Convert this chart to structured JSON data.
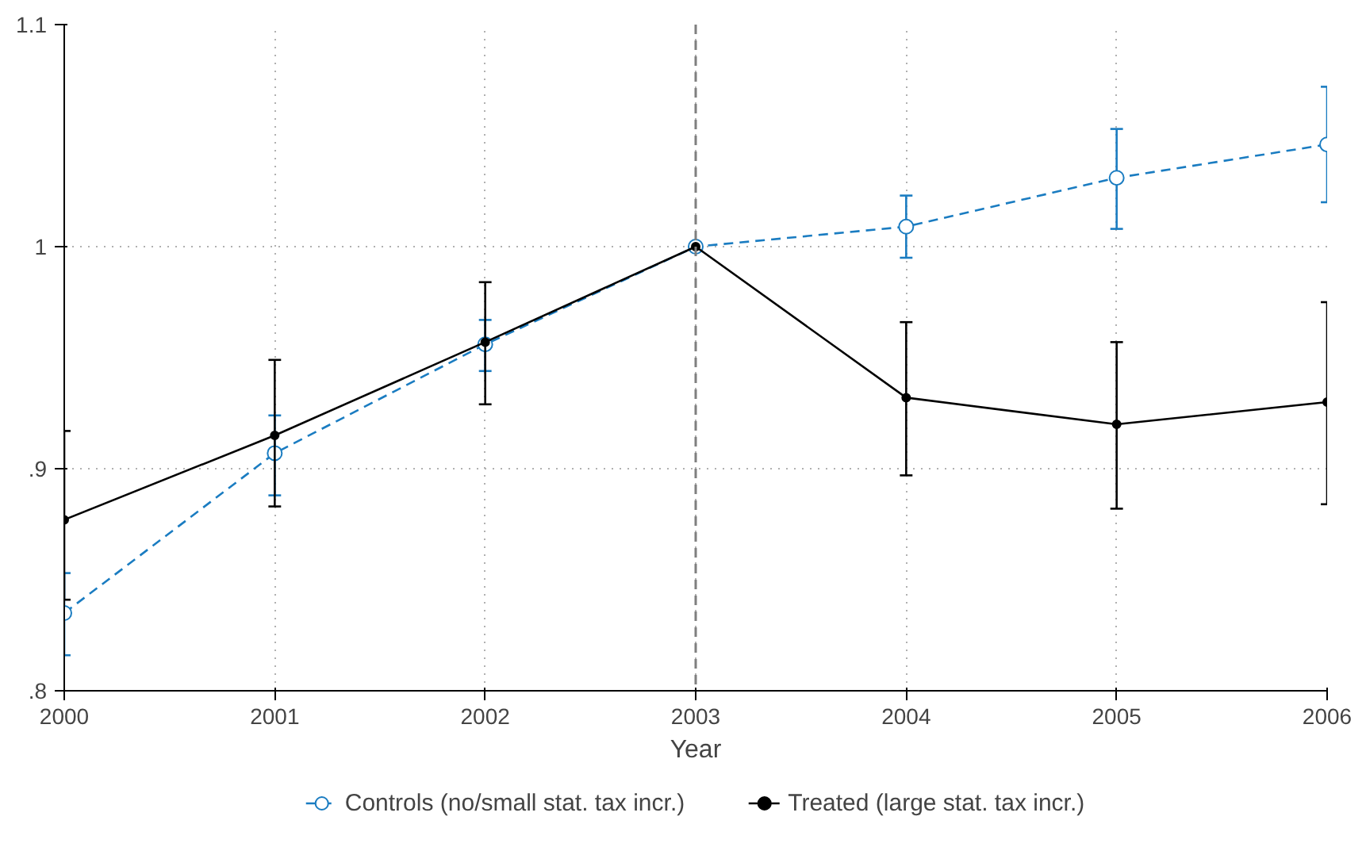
{
  "chart_data": {
    "type": "line",
    "xlabel": "Year",
    "x": [
      2000,
      2001,
      2002,
      2003,
      2004,
      2005,
      2006
    ],
    "xlim": [
      2000,
      2006
    ],
    "xticks": [
      2000,
      2001,
      2002,
      2003,
      2004,
      2005,
      2006
    ],
    "ylim": [
      0.8,
      1.1
    ],
    "yticks": [
      {
        "value": 0.8,
        "label": ".8"
      },
      {
        "value": 0.9,
        "label": ".9"
      },
      {
        "value": 1,
        "label": "1"
      },
      {
        "value": 1.1,
        "label": "1.1"
      }
    ],
    "grid": true,
    "legend": "bottom",
    "marker": "circle",
    "ref_lines": [
      {
        "axis": "x",
        "value": 2003,
        "color": "#7f7f7f",
        "line_style": "dashed"
      }
    ],
    "series": [
      {
        "name": "Controls (no/small stat. tax incr.)",
        "color": "#1a7cc1",
        "line_style": "dashed",
        "values": [
          0.835,
          0.907,
          0.956,
          1.0,
          1.009,
          1.031,
          1.046
        ],
        "errors": [
          [
            0.816,
            0.853
          ],
          [
            0.888,
            0.924
          ],
          [
            0.944,
            0.967
          ],
          null,
          [
            0.995,
            1.023
          ],
          [
            1.008,
            1.053
          ],
          [
            1.02,
            1.072
          ]
        ]
      },
      {
        "name": "Treated (large stat. tax incr.)",
        "color": "#000000",
        "line_style": "solid",
        "values": [
          0.877,
          0.915,
          0.957,
          1.0,
          0.932,
          0.92,
          0.93
        ],
        "errors": [
          [
            0.841,
            0.917
          ],
          [
            0.883,
            0.949
          ],
          [
            0.929,
            0.984
          ],
          null,
          [
            0.897,
            0.966
          ],
          [
            0.882,
            0.957
          ],
          [
            0.884,
            0.975
          ]
        ]
      }
    ]
  }
}
